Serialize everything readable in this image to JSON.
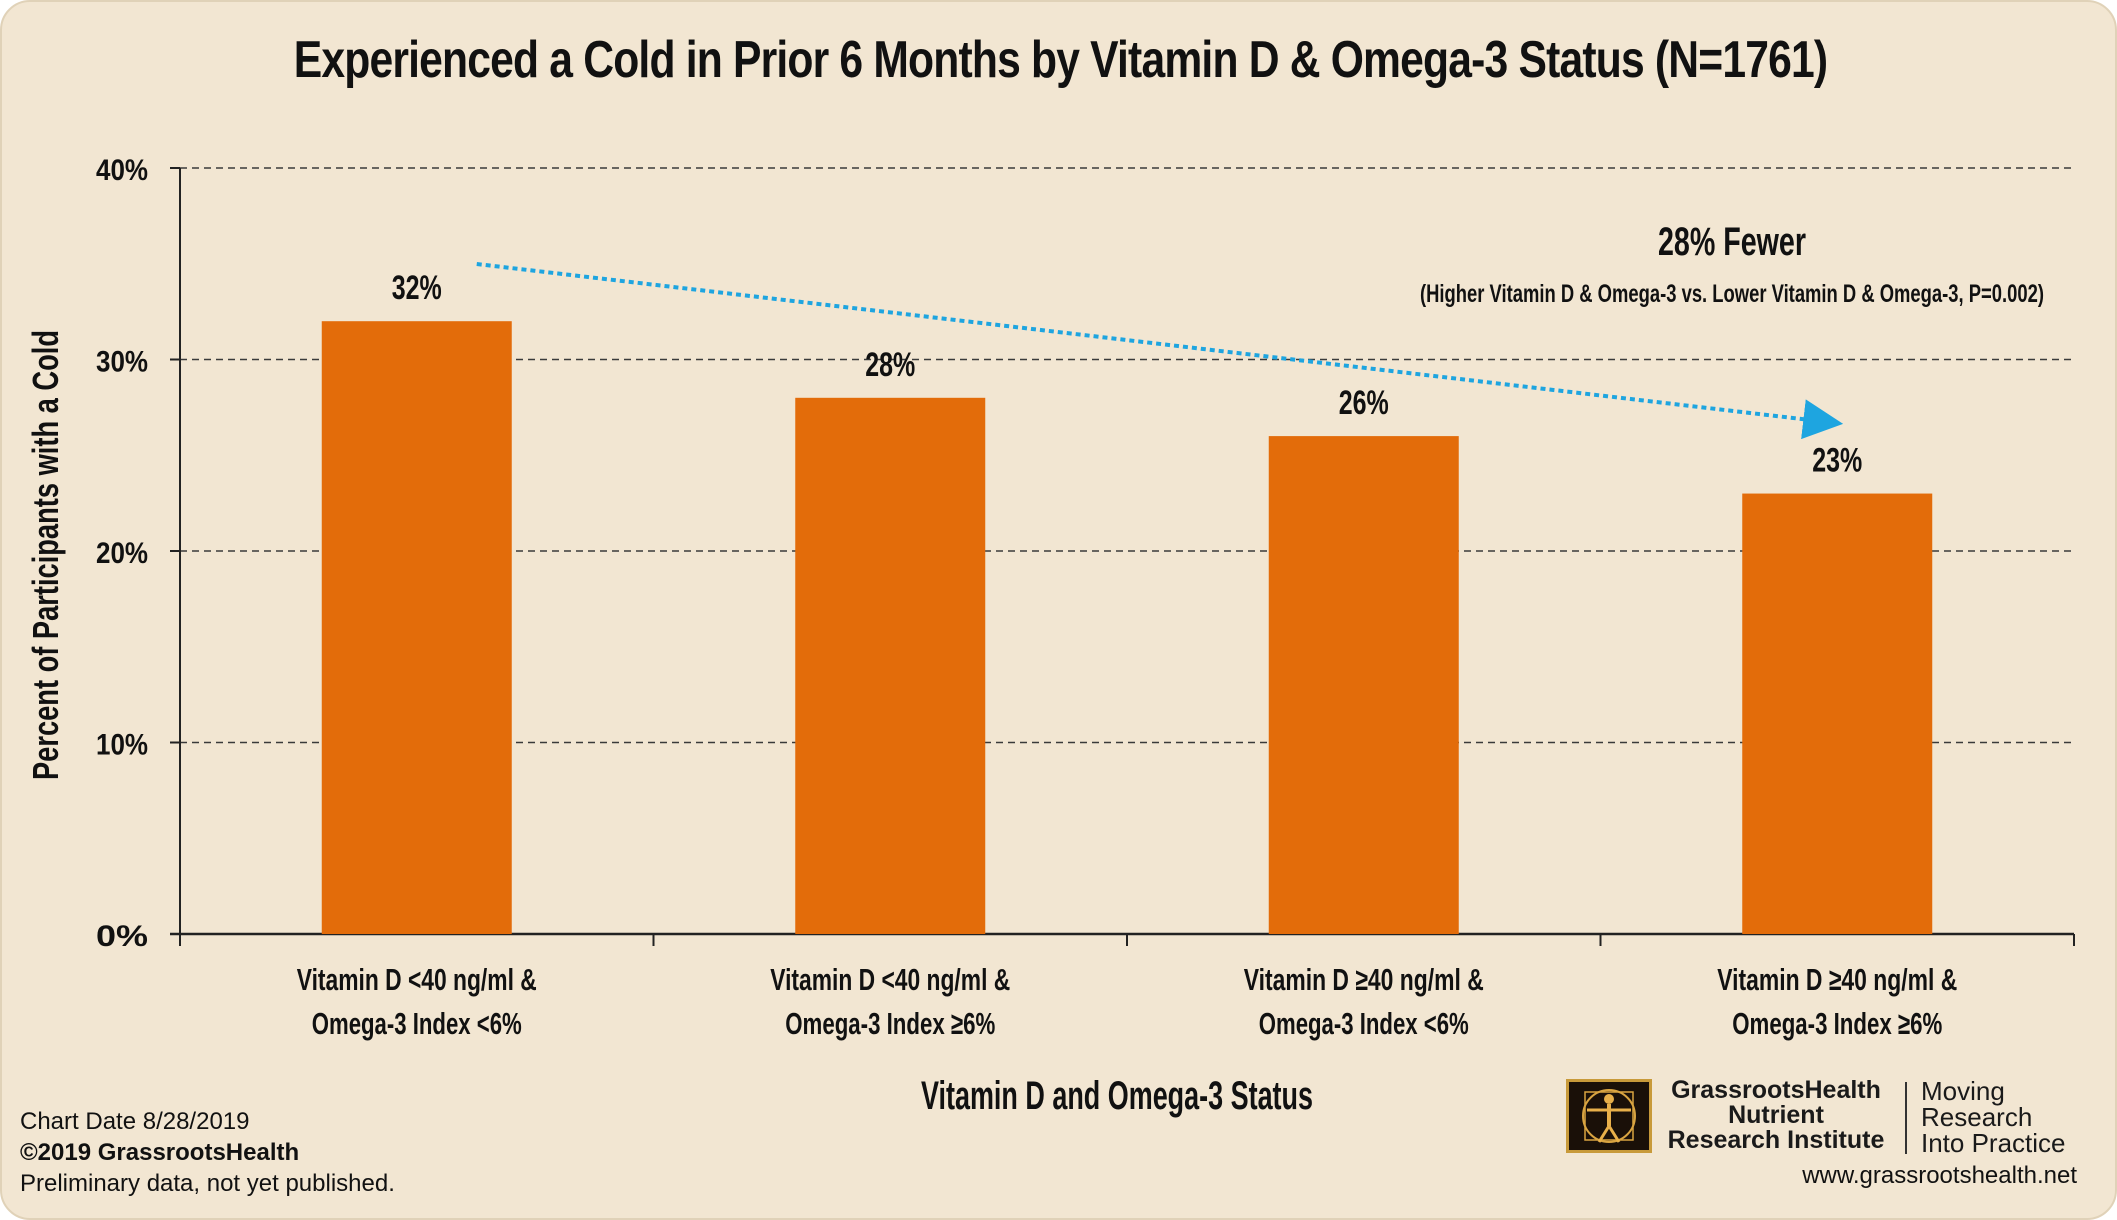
{
  "chart_data": {
    "type": "bar",
    "title": "Experienced a Cold in Prior 6 Months by Vitamin D  & Omega-3 Status (N=1761)",
    "xlabel": "Vitamin D and Omega-3 Status",
    "ylabel": "Percent of Participants with a Cold",
    "ylim": [
      0,
      40
    ],
    "yticks": [
      "0%",
      "10%",
      "20%",
      "30%",
      "40%"
    ],
    "grid": true,
    "bar_color": "#e36c0a",
    "categories": [
      [
        "Vitamin D <40 ng/ml &",
        "Omega-3 Index <6%"
      ],
      [
        "Vitamin D <40 ng/ml &",
        "Omega-3 Index ≥6%"
      ],
      [
        "Vitamin D ≥40 ng/ml &",
        "Omega-3 Index <6%"
      ],
      [
        "Vitamin D ≥40 ng/ml &",
        "Omega-3 Index ≥6%"
      ]
    ],
    "values": [
      32,
      28,
      26,
      23
    ],
    "data_labels": [
      "32%",
      "28%",
      "26%",
      "23%"
    ],
    "annotation": {
      "headline": "28% Fewer",
      "detail": "(Higher Vitamin D & Omega-3 vs. Lower Vitamin D & Omega-3, P=0.002)",
      "arrow_color": "#1ea5e0"
    }
  },
  "footer": {
    "chart_date": "Chart Date 8/28/2019",
    "copyright": "©2019 GrassrootsHealth",
    "note": "Preliminary data, not yet published.",
    "org_name": [
      "GrassrootsHealth",
      "Nutrient",
      "Research Institute"
    ],
    "tagline": [
      "Moving",
      "Research",
      "Into Practice"
    ],
    "url": "www.grassrootshealth.net"
  }
}
